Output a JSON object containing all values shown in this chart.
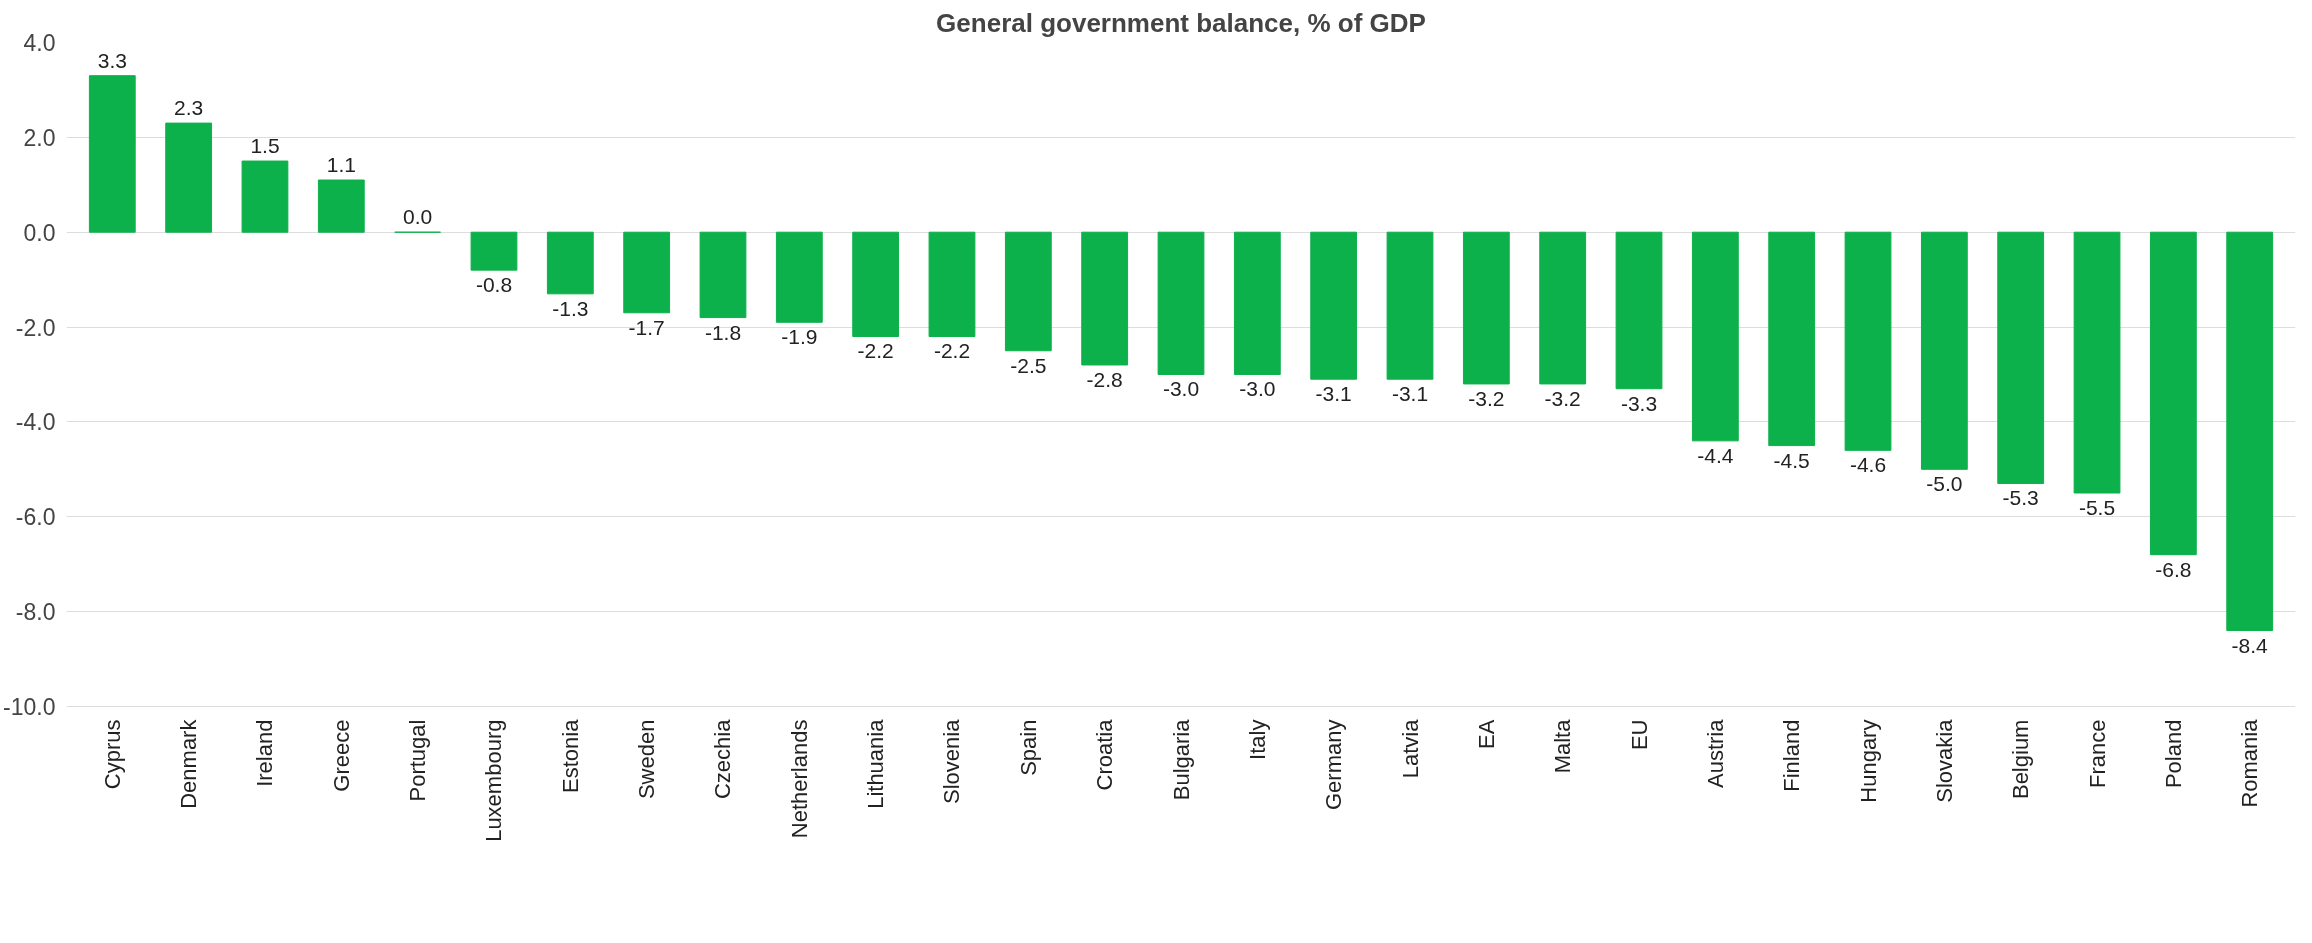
{
  "chart_data": {
    "type": "bar",
    "title": "General government balance, % of GDP",
    "categories": [
      "Cyprus",
      "Denmark",
      "Ireland",
      "Greece",
      "Portugal",
      "Luxembourg",
      "Estonia",
      "Sweden",
      "Czechia",
      "Netherlands",
      "Lithuania",
      "Slovenia",
      "Spain",
      "Croatia",
      "Bulgaria",
      "Italy",
      "Germany",
      "Latvia",
      "EA",
      "Malta",
      "EU",
      "Austria",
      "Finland",
      "Hungary",
      "Slovakia",
      "Belgium",
      "France",
      "Poland",
      "Romania"
    ],
    "values": [
      3.3,
      2.3,
      1.5,
      1.1,
      0.0,
      -0.8,
      -1.3,
      -1.7,
      -1.8,
      -1.9,
      -2.2,
      -2.2,
      -2.5,
      -2.8,
      -3.0,
      -3.0,
      -3.1,
      -3.1,
      -3.2,
      -3.2,
      -3.3,
      -4.4,
      -4.5,
      -4.6,
      -5.0,
      -5.3,
      -5.5,
      -6.8,
      -8.4
    ],
    "value_labels": [
      "3.3",
      "2.3",
      "1.5",
      "1.1",
      "0.0",
      "-0.8",
      "-1.3",
      "-1.7",
      "-1.8",
      "-1.9",
      "-2.2",
      "-2.2",
      "-2.5",
      "-2.8",
      "-3.0",
      "-3.0",
      "-3.1",
      "-3.1",
      "-3.2",
      "-3.2",
      "-3.3",
      "-4.4",
      "-4.5",
      "-4.6",
      "-5.0",
      "-5.3",
      "-5.5",
      "-6.8",
      "-8.4"
    ],
    "color": "#0db14b",
    "ylim": [
      -10,
      4
    ],
    "yticks": [
      {
        "value": 4,
        "label": "4.0"
      },
      {
        "value": 2,
        "label": "2.0"
      },
      {
        "value": 0,
        "label": "0.0"
      },
      {
        "value": -2,
        "label": "-2.0"
      },
      {
        "value": -4,
        "label": "-4.0"
      },
      {
        "value": -6,
        "label": "-6.0"
      },
      {
        "value": -8,
        "label": "-8.0"
      },
      {
        "value": -10,
        "label": "-10.0"
      }
    ],
    "grid": "y"
  }
}
